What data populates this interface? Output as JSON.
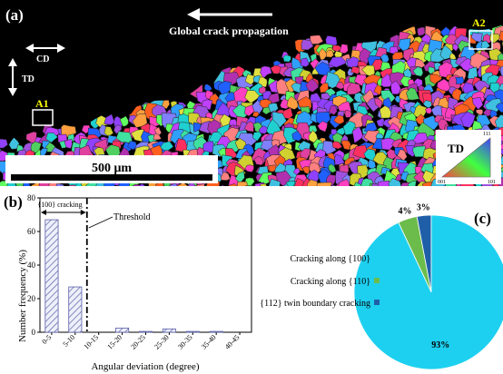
{
  "panel_a": {
    "label": "(a)",
    "arrow_text": "Global crack propagation",
    "cd_label": "CD",
    "td_label": "TD",
    "box_a1": "A1",
    "box_a2": "A2",
    "scale_bar": "500 μm",
    "ipf": {
      "title": "TD",
      "v001": "001",
      "v101": "101",
      "v111": "111"
    },
    "colors": {
      "background": "#000000",
      "box": "#ffffff",
      "label_a1": "#ffff00",
      "label_a2": "#ffff00"
    }
  },
  "panel_b": {
    "label": "(b)",
    "bracket_label": "{100} cracking",
    "threshold_label": "Threshold",
    "chart_data": {
      "type": "bar",
      "categories": [
        "0-5",
        "5-10",
        "10-15",
        "15-20",
        "20-25",
        "25-30",
        "30-35",
        "35-40",
        "40-45"
      ],
      "values": [
        67,
        27,
        0,
        2.5,
        0.5,
        2,
        0.5,
        0.5,
        0
      ],
      "xlabel": "Angular deviation (degree)",
      "ylabel": "Number frequency (%)",
      "ylim": [
        0,
        80
      ],
      "yticks": [
        "0",
        "20",
        "40",
        "60",
        "80"
      ],
      "threshold_x": 10,
      "grid": false
    }
  },
  "panel_c": {
    "label": "(c)",
    "chart_data": {
      "type": "pie",
      "slices": [
        {
          "legend": "Cracking along {100}",
          "value": 93,
          "label": "93%",
          "color": "#1ed0f0"
        },
        {
          "legend": "Cracking along {110}",
          "value": 4,
          "label": "4%",
          "color": "#6cbc4c"
        },
        {
          "legend": "{112} twin boundary cracking",
          "value": 3,
          "label": "3%",
          "color": "#1f5fa8"
        }
      ]
    }
  }
}
